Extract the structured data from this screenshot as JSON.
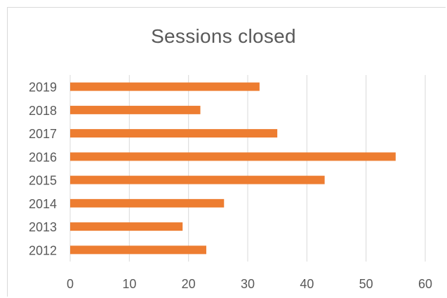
{
  "chart_data": {
    "type": "bar",
    "orientation": "horizontal",
    "title": "Sessions closed",
    "xlabel": "",
    "ylabel": "",
    "categories": [
      "2012",
      "2013",
      "2014",
      "2015",
      "2016",
      "2017",
      "2018",
      "2019"
    ],
    "values": [
      23,
      19,
      26,
      43,
      55,
      35,
      22,
      32
    ],
    "xlim": [
      0,
      60
    ],
    "xticks": [
      "0",
      "10",
      "20",
      "30",
      "40",
      "50",
      "60"
    ],
    "grid": true,
    "legend": "none",
    "bar_color": "#ed7d31",
    "grid_color": "#d9d9d9"
  }
}
